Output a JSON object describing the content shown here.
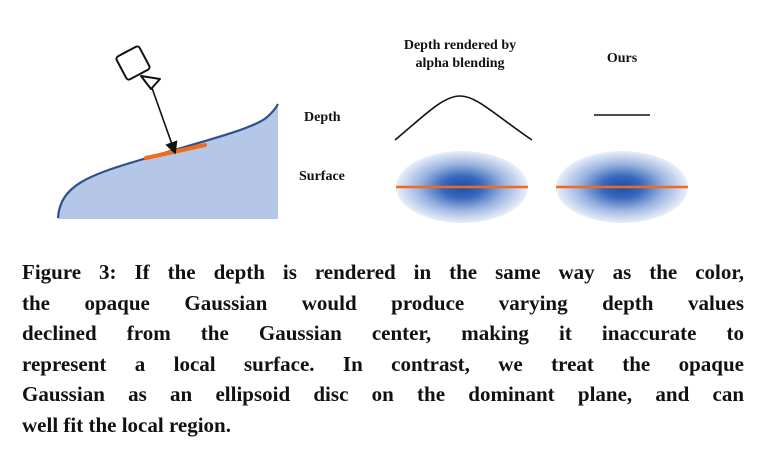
{
  "figure": {
    "col_alpha_title_line1": "Depth rendered by",
    "col_alpha_title_line2": "alpha blending",
    "col_ours_title": "Ours",
    "row_depth_label": "Depth",
    "row_surface_label": "Surface",
    "colors": {
      "surface_fill": "#b4c7e7",
      "surface_edge": "#2f4f8f",
      "gaussian_center": "#1f4ea3",
      "gaussian_edge": "#ffffff",
      "disc_line": "#f26a1b",
      "stroke": "#111111"
    },
    "icons": [
      "camera-icon",
      "ray-arrow-icon",
      "gaussian-ellipse-icon"
    ]
  },
  "caption": {
    "lines": [
      "Figure 3: If the depth is rendered in the same way as the color,",
      "the opaque Gaussian would produce varying depth values",
      "declined from the Gaussian center, making it inaccurate to",
      "represent a local surface. In contrast, we treat the opaque",
      "Gaussian as an ellipsoid disc on the dominant plane, and can",
      "well fit the local region."
    ]
  }
}
